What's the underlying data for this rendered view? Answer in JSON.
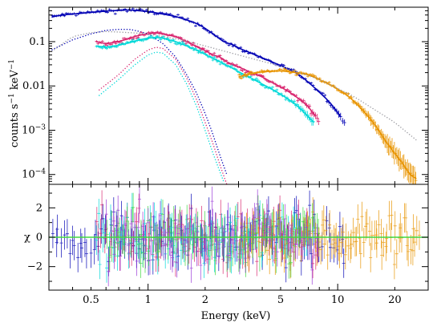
{
  "chart_data": [
    {
      "panel": "spectrum",
      "type": "scatter",
      "xscale": "log",
      "yscale": "log",
      "xlim": [
        0.3,
        30
      ],
      "ylim": [
        6e-05,
        0.6
      ],
      "ylabel_parts": {
        "base": "counts s",
        "sup1": "−1",
        "mid": " keV",
        "sup2": "−1"
      },
      "y_ticks": [
        {
          "value": 0.1,
          "label": "0.1"
        },
        {
          "value": 0.01,
          "label": "0.01"
        },
        {
          "value": 0.001,
          "label_base": "10",
          "label_exp": "−3"
        },
        {
          "value": 0.0001,
          "label_base": "10",
          "label_exp": "−4"
        }
      ],
      "series": [
        {
          "color": "#0000b4",
          "style": "data",
          "points": [
            [
              0.31,
              0.36
            ],
            [
              0.35,
              0.4
            ],
            [
              0.4,
              0.42
            ],
            [
              0.45,
              0.44
            ],
            [
              0.5,
              0.46
            ],
            [
              0.6,
              0.49
            ],
            [
              0.7,
              0.51
            ],
            [
              0.8,
              0.52
            ],
            [
              0.9,
              0.5
            ],
            [
              1.0,
              0.48
            ],
            [
              1.2,
              0.42
            ],
            [
              1.4,
              0.37
            ],
            [
              1.6,
              0.31
            ],
            [
              1.8,
              0.26
            ],
            [
              2.0,
              0.2
            ],
            [
              2.2,
              0.15
            ],
            [
              2.5,
              0.1
            ],
            [
              2.8,
              0.085
            ],
            [
              3.0,
              0.072
            ],
            [
              3.5,
              0.055
            ],
            [
              4.0,
              0.043
            ],
            [
              4.5,
              0.035
            ],
            [
              5.0,
              0.029
            ],
            [
              5.5,
              0.024
            ],
            [
              6.0,
              0.02
            ],
            [
              6.5,
              0.016
            ],
            [
              7.0,
              0.012
            ],
            [
              7.5,
              0.0095
            ],
            [
              8.0,
              0.0072
            ],
            [
              9.0,
              0.0045
            ],
            [
              10.0,
              0.0025
            ],
            [
              11.0,
              0.0014
            ]
          ]
        },
        {
          "color": "#0000b4",
          "style": "model-dotted",
          "points": [
            [
              0.31,
              0.065
            ],
            [
              0.4,
              0.11
            ],
            [
              0.5,
              0.15
            ],
            [
              0.6,
              0.18
            ],
            [
              0.7,
              0.19
            ],
            [
              0.8,
              0.19
            ],
            [
              0.9,
              0.17
            ],
            [
              1.0,
              0.15
            ],
            [
              1.2,
              0.09
            ],
            [
              1.4,
              0.045
            ],
            [
              1.6,
              0.018
            ],
            [
              1.8,
              0.007
            ],
            [
              2.0,
              0.0024
            ],
            [
              2.2,
              0.0008
            ],
            [
              2.4,
              0.00026
            ],
            [
              2.6,
              0.0001
            ]
          ]
        },
        {
          "color": "#d8266f",
          "style": "data",
          "points": [
            [
              0.53,
              0.1
            ],
            [
              0.6,
              0.09
            ],
            [
              0.7,
              0.1
            ],
            [
              0.8,
              0.12
            ],
            [
              0.9,
              0.14
            ],
            [
              1.0,
              0.15
            ],
            [
              1.1,
              0.16
            ],
            [
              1.2,
              0.15
            ],
            [
              1.4,
              0.13
            ],
            [
              1.6,
              0.1
            ],
            [
              1.8,
              0.078
            ],
            [
              2.0,
              0.063
            ],
            [
              2.2,
              0.05
            ],
            [
              2.4,
              0.045
            ],
            [
              2.6,
              0.035
            ],
            [
              2.8,
              0.03
            ],
            [
              3.0,
              0.027
            ],
            [
              3.5,
              0.02
            ],
            [
              4.0,
              0.016
            ],
            [
              4.5,
              0.012
            ],
            [
              5.0,
              0.0095
            ],
            [
              5.5,
              0.0075
            ],
            [
              6.0,
              0.0058
            ],
            [
              6.5,
              0.0045
            ],
            [
              7.0,
              0.0034
            ],
            [
              7.5,
              0.0023
            ],
            [
              8.0,
              0.0016
            ]
          ]
        },
        {
          "color": "#d8266f",
          "style": "model-dotted",
          "points": [
            [
              0.55,
              0.008
            ],
            [
              0.7,
              0.018
            ],
            [
              0.85,
              0.04
            ],
            [
              1.0,
              0.065
            ],
            [
              1.1,
              0.075
            ],
            [
              1.2,
              0.07
            ],
            [
              1.4,
              0.04
            ],
            [
              1.6,
              0.015
            ],
            [
              1.8,
              0.005
            ],
            [
              2.0,
              0.0015
            ],
            [
              2.2,
              0.0005
            ],
            [
              2.4,
              0.00016
            ],
            [
              2.6,
              6e-05
            ]
          ]
        },
        {
          "color": "#00d8d8",
          "style": "data",
          "points": [
            [
              0.53,
              0.08
            ],
            [
              0.6,
              0.075
            ],
            [
              0.7,
              0.083
            ],
            [
              0.8,
              0.095
            ],
            [
              0.9,
              0.11
            ],
            [
              1.0,
              0.12
            ],
            [
              1.1,
              0.125
            ],
            [
              1.2,
              0.12
            ],
            [
              1.4,
              0.1
            ],
            [
              1.6,
              0.08
            ],
            [
              1.8,
              0.064
            ],
            [
              2.0,
              0.052
            ],
            [
              2.2,
              0.042
            ],
            [
              2.5,
              0.032
            ],
            [
              2.8,
              0.025
            ],
            [
              3.0,
              0.021
            ],
            [
              3.5,
              0.015
            ],
            [
              4.0,
              0.011
            ],
            [
              4.5,
              0.0085
            ],
            [
              5.0,
              0.0065
            ],
            [
              5.5,
              0.005
            ],
            [
              6.0,
              0.0038
            ],
            [
              6.5,
              0.0028
            ],
            [
              7.0,
              0.002
            ],
            [
              7.5,
              0.0015
            ]
          ]
        },
        {
          "color": "#00d8d8",
          "style": "model-dotted",
          "points": [
            [
              0.55,
              0.006
            ],
            [
              0.7,
              0.014
            ],
            [
              0.85,
              0.03
            ],
            [
              1.0,
              0.05
            ],
            [
              1.1,
              0.058
            ],
            [
              1.2,
              0.055
            ],
            [
              1.4,
              0.03
            ],
            [
              1.6,
              0.011
            ],
            [
              1.8,
              0.0035
            ],
            [
              2.0,
              0.001
            ],
            [
              2.2,
              0.0003
            ],
            [
              2.5,
              7e-05
            ]
          ]
        },
        {
          "color": "#e89400",
          "style": "data",
          "points": [
            [
              3.0,
              0.016
            ],
            [
              3.5,
              0.019
            ],
            [
              4.0,
              0.021
            ],
            [
              5.0,
              0.022
            ],
            [
              6.0,
              0.02
            ],
            [
              7.0,
              0.018
            ],
            [
              8.0,
              0.014
            ],
            [
              9.0,
              0.011
            ],
            [
              10.0,
              0.0085
            ],
            [
              11.0,
              0.0065
            ],
            [
              12.0,
              0.0048
            ],
            [
              13.0,
              0.0034
            ],
            [
              14.0,
              0.0024
            ],
            [
              15.0,
              0.0017
            ],
            [
              16.0,
              0.0012
            ],
            [
              17.0,
              0.0008
            ],
            [
              18.0,
              0.00055
            ],
            [
              20.0,
              0.0003
            ],
            [
              22.0,
              0.00018
            ],
            [
              24.0,
              0.0001
            ],
            [
              26.0,
              8e-05
            ]
          ]
        },
        {
          "color": "#9a9aa0",
          "style": "model-dotted",
          "points": [
            [
              0.31,
              0.06
            ],
            [
              0.4,
              0.13
            ],
            [
              0.5,
              0.16
            ],
            [
              0.6,
              0.17
            ],
            [
              0.8,
              0.16
            ],
            [
              1.0,
              0.15
            ],
            [
              1.2,
              0.13
            ],
            [
              1.5,
              0.11
            ],
            [
              2.0,
              0.08
            ],
            [
              3.0,
              0.05
            ],
            [
              5.0,
              0.028
            ],
            [
              8.0,
              0.014
            ],
            [
              12.0,
              0.006
            ],
            [
              20.0,
              0.0015
            ],
            [
              26.0,
              0.0006
            ]
          ]
        }
      ]
    },
    {
      "panel": "residuals",
      "type": "scatter",
      "xscale": "log",
      "xlim": [
        0.3,
        30
      ],
      "ylim": [
        -3.6,
        3.6
      ],
      "ylabel": "χ",
      "y_ticks": [
        {
          "value": 2,
          "label": "2"
        },
        {
          "value": 0,
          "label": "0"
        },
        {
          "value": -2,
          "label": "−2"
        }
      ],
      "x_ticks": [
        {
          "value": 0.5,
          "label": "0.5"
        },
        {
          "value": 1,
          "label": "1"
        },
        {
          "value": 2,
          "label": "2"
        },
        {
          "value": 5,
          "label": "5"
        },
        {
          "value": 10,
          "label": "10"
        },
        {
          "value": 20,
          "label": "20"
        }
      ],
      "xlabel": "Energy (keV)",
      "zero_line_color": "#40d840",
      "series": [
        {
          "color": "#0000b4",
          "range": [
            0.31,
            11
          ]
        },
        {
          "color": "#d8266f",
          "range": [
            0.53,
            8
          ]
        },
        {
          "color": "#00d8d8",
          "range": [
            0.53,
            7.5
          ]
        },
        {
          "color": "#e89400",
          "range": [
            3,
            27
          ]
        },
        {
          "color": "#40d840",
          "range": [
            0.6,
            8
          ]
        },
        {
          "color": "#9a3ad8",
          "range": [
            0.6,
            8
          ]
        }
      ]
    }
  ]
}
